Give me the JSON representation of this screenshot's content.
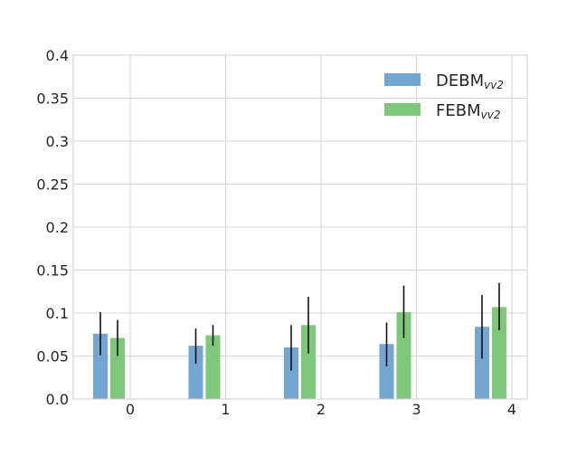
{
  "chart_data": {
    "type": "bar",
    "categories": [
      "0",
      "1",
      "2",
      "3",
      "4"
    ],
    "series": [
      {
        "name": "DEBM",
        "name_subscript": "vv2",
        "color": "#73a6d1",
        "values": [
          0.076,
          0.062,
          0.06,
          0.064,
          0.084
        ],
        "err_low": [
          0.051,
          0.041,
          0.033,
          0.038,
          0.047
        ],
        "err_high": [
          0.101,
          0.082,
          0.086,
          0.089,
          0.121
        ]
      },
      {
        "name": "FEBM",
        "name_subscript": "vv2",
        "color": "#7fc77a",
        "values": [
          0.071,
          0.074,
          0.086,
          0.101,
          0.107
        ],
        "err_low": [
          0.05,
          0.062,
          0.053,
          0.071,
          0.08
        ],
        "err_high": [
          0.092,
          0.086,
          0.119,
          0.132,
          0.135
        ]
      }
    ],
    "ylim": [
      0,
      0.4
    ],
    "yticks": [
      "0.0",
      "0.05",
      "0.1",
      "0.15",
      "0.2",
      "0.25",
      "0.3",
      "0.35",
      "0.4"
    ],
    "ytick_values": [
      0,
      0.05,
      0.1,
      0.15,
      0.2,
      0.25,
      0.3,
      0.35,
      0.4
    ],
    "grid": true,
    "legend_position": "top-right",
    "error_bar_color": "#111111",
    "grid_color": "#d6d6d6",
    "spine_color": "#cccccc"
  }
}
